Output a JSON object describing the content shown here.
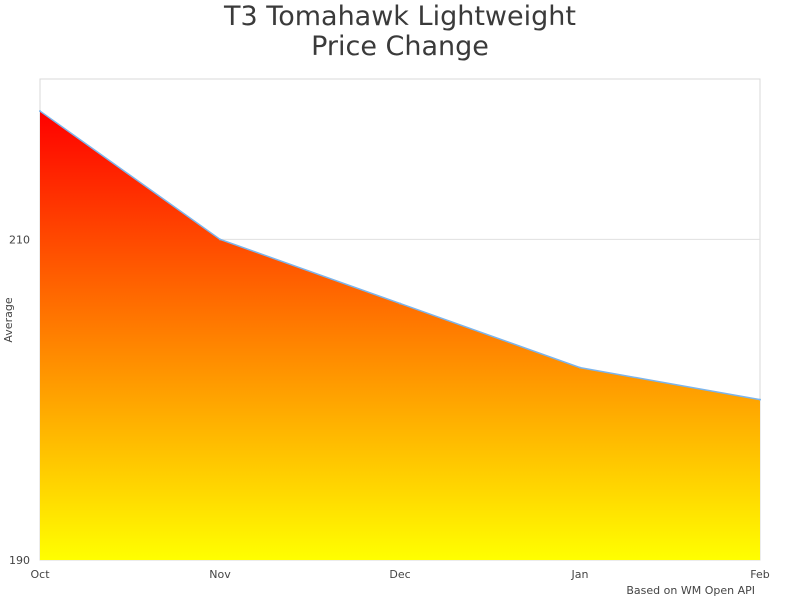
{
  "chart_data": {
    "type": "area",
    "title_line1": "T3 Tomahawk Lightweight",
    "title_line2": "Price Change",
    "categories": [
      "Oct",
      "Nov",
      "Dec",
      "Jan",
      "Feb"
    ],
    "values": [
      218,
      210,
      206,
      202,
      200
    ],
    "ylabel": "Average",
    "ylim": [
      190,
      220
    ],
    "yticks": [
      "190",
      "210"
    ],
    "grid": true,
    "fill_gradient": {
      "top": "#ff0000",
      "bottom": "#ffff00"
    },
    "line_color": "#7cb5ec",
    "credits": "Based on WM Open API"
  }
}
